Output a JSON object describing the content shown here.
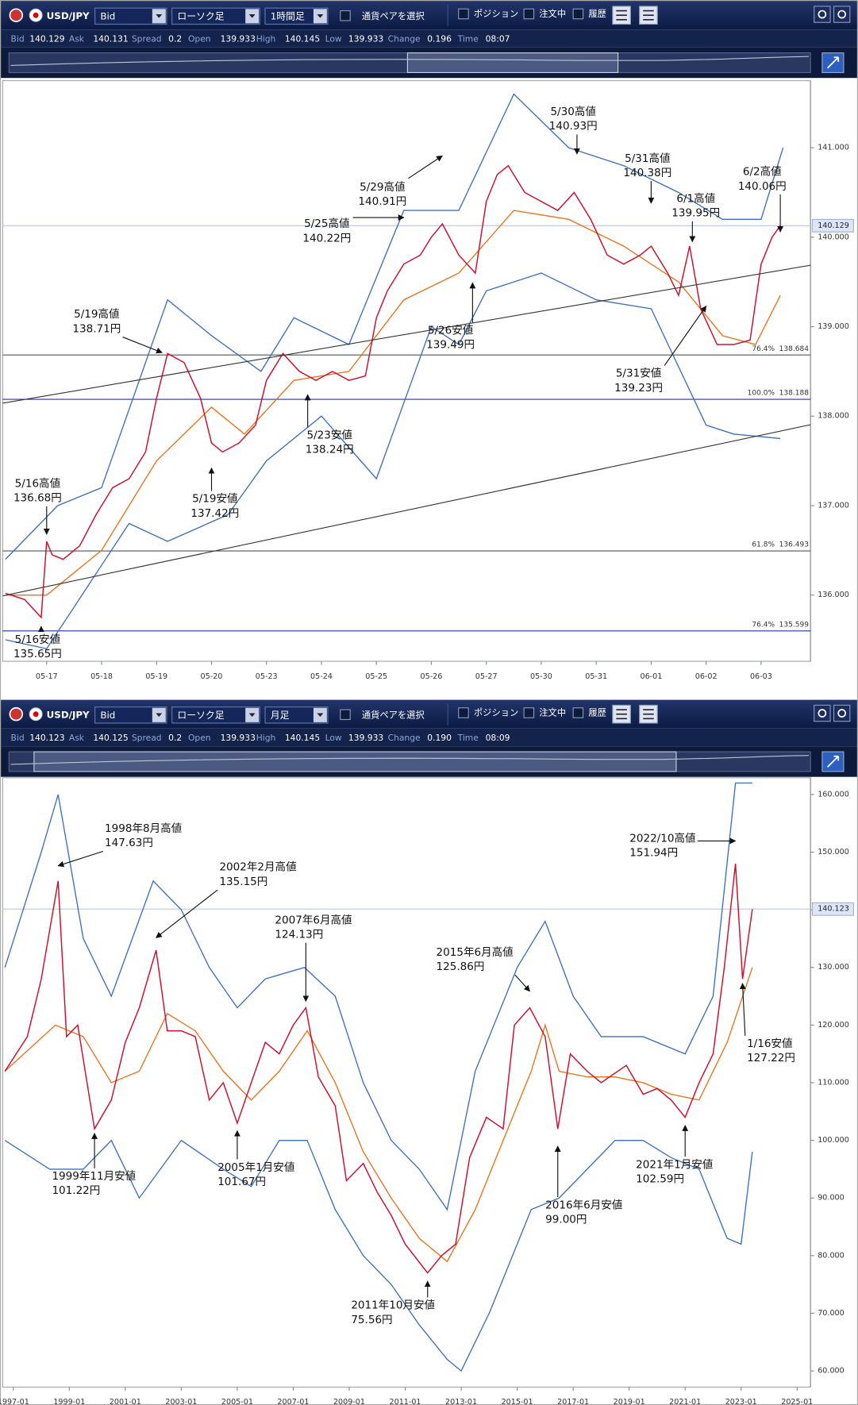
{
  "toolbars": [
    {
      "symbol": "USD/JPY",
      "price_type": "Bid",
      "chart_style": "ローソク足",
      "timeframe": "1時間足",
      "pair_select": "通貨ペアを選択",
      "options": [
        "ポジション",
        "注文中",
        "履歴"
      ]
    },
    {
      "symbol": "USD/JPY",
      "price_type": "Bid",
      "chart_style": "ローソク足",
      "timeframe": "月足",
      "pair_select": "通貨ペアを選択",
      "options": [
        "ポジション",
        "注文中",
        "履歴"
      ]
    }
  ],
  "quotes": [
    [
      {
        "label": "Bid",
        "value": "140.129"
      },
      {
        "label": "Ask",
        "value": "140.131"
      },
      {
        "label": "Spread",
        "value": "0.2"
      },
      {
        "label": "Open",
        "value": "139.933"
      },
      {
        "label": "High",
        "value": "140.145"
      },
      {
        "label": "Low",
        "value": "139.933"
      },
      {
        "label": "Change",
        "value": "0.196"
      },
      {
        "label": "Time",
        "value": "08:07"
      }
    ],
    [
      {
        "label": "Bid",
        "value": "140.123"
      },
      {
        "label": "Ask",
        "value": "140.125"
      },
      {
        "label": "Spread",
        "value": "0.2"
      },
      {
        "label": "Open",
        "value": "139.933"
      },
      {
        "label": "High",
        "value": "140.145"
      },
      {
        "label": "Low",
        "value": "139.933"
      },
      {
        "label": "Change",
        "value": "0.190"
      },
      {
        "label": "Time",
        "value": "08:09"
      }
    ]
  ],
  "chart_data": [
    {
      "type": "line",
      "xlim": [
        -0.8,
        13.9
      ],
      "xticks": [
        {
          "value": 0,
          "label": "05-17"
        },
        {
          "value": 1,
          "label": "05-18"
        },
        {
          "value": 2,
          "label": "05-19"
        },
        {
          "value": 3,
          "label": "05-20"
        },
        {
          "value": 4,
          "label": "05-23"
        },
        {
          "value": 5,
          "label": "05-24"
        },
        {
          "value": 6,
          "label": "05-25"
        },
        {
          "value": 7,
          "label": "05-26"
        },
        {
          "value": 8,
          "label": "05-27"
        },
        {
          "value": 9,
          "label": "05-30"
        },
        {
          "value": 10,
          "label": "05-31"
        },
        {
          "value": 11,
          "label": "06-01"
        },
        {
          "value": 12,
          "label": "06-02"
        },
        {
          "value": 13,
          "label": "06-03"
        }
      ],
      "ylim": [
        135.26,
        141.75
      ],
      "yticks": [
        {
          "value": 136,
          "label": "136.000"
        },
        {
          "value": 137,
          "label": "137.000"
        },
        {
          "value": 138,
          "label": "138.000"
        },
        {
          "value": 139,
          "label": "139.000"
        },
        {
          "value": 140,
          "label": "140.000"
        },
        {
          "value": 141,
          "label": "141.000"
        }
      ],
      "current_price": 140.129,
      "series": [
        {
          "color": "#cc1030",
          "x": [
            -0.75,
            -0.4,
            -0.1,
            0,
            0.1,
            0.3,
            0.6,
            0.9,
            1.2,
            1.5,
            1.8,
            2.0,
            2.2,
            2.5,
            2.8,
            3.0,
            3.2,
            3.5,
            3.8,
            4.0,
            4.3,
            4.6,
            4.9,
            5.2,
            5.5,
            5.8,
            6.0,
            6.2,
            6.5,
            6.8,
            7.0,
            7.2,
            7.5,
            7.8,
            8.0,
            8.2,
            8.4,
            8.7,
            9.0,
            9.3,
            9.6,
            9.9,
            10.2,
            10.5,
            10.8,
            11.0,
            11.3,
            11.5,
            11.7,
            11.9,
            12.2,
            12.5,
            12.8,
            13.0,
            13.2,
            13.35
          ],
          "values": [
            136.02,
            135.95,
            135.75,
            136.6,
            136.45,
            136.4,
            136.55,
            136.9,
            137.2,
            137.3,
            137.6,
            138.2,
            138.7,
            138.6,
            138.2,
            137.7,
            137.6,
            137.7,
            137.9,
            138.4,
            138.7,
            138.5,
            138.4,
            138.5,
            138.4,
            138.45,
            139.1,
            139.4,
            139.7,
            139.8,
            140.0,
            140.15,
            139.8,
            139.6,
            140.4,
            140.7,
            140.8,
            140.5,
            140.4,
            140.3,
            140.5,
            140.2,
            139.8,
            139.7,
            139.8,
            139.9,
            139.6,
            139.35,
            139.9,
            139.2,
            138.8,
            138.8,
            138.85,
            139.7,
            140.0,
            140.13
          ]
        },
        {
          "color": "#e8731a",
          "x": [
            -0.75,
            0,
            1,
            2,
            3,
            3.6,
            4.5,
            5.5,
            6.5,
            7.5,
            8.5,
            9.5,
            10.5,
            11.5,
            12.3,
            12.9,
            13.35
          ],
          "values": [
            136.0,
            136.0,
            136.5,
            137.5,
            138.1,
            137.8,
            138.4,
            138.5,
            139.3,
            139.6,
            140.3,
            140.2,
            139.9,
            139.5,
            138.9,
            138.8,
            139.35
          ]
        },
        {
          "color": "#3d6fc0",
          "x": [
            -0.75,
            0.2,
            1.0,
            2.2,
            3.0,
            3.9,
            4.5,
            5.5,
            6.5,
            7.5,
            8.5,
            9.5,
            10.5,
            11.5,
            12.3,
            13.0,
            13.4
          ],
          "values": [
            136.4,
            137.0,
            137.2,
            139.3,
            138.9,
            138.5,
            139.1,
            138.8,
            140.3,
            140.3,
            141.6,
            141.0,
            140.8,
            140.5,
            140.2,
            140.2,
            141.0
          ]
        },
        {
          "color": "#3d6fc0",
          "x": [
            -0.75,
            0,
            1.5,
            2.2,
            3.3,
            4,
            5,
            6,
            7,
            7.5,
            8,
            9,
            10,
            11,
            12,
            12.5,
            13.35
          ],
          "values": [
            135.5,
            135.4,
            136.8,
            136.6,
            136.9,
            137.5,
            138.0,
            137.3,
            139.0,
            138.8,
            139.4,
            139.6,
            139.3,
            139.2,
            137.9,
            137.8,
            137.75
          ]
        }
      ],
      "levels": [
        {
          "ratio": "76.4%",
          "price": 138.684,
          "color": "#555555"
        },
        {
          "ratio": "100.0%",
          "price": 138.188,
          "color": "#2233aa"
        },
        {
          "ratio": "61.8%",
          "price": 136.493,
          "color": "#555555"
        },
        {
          "ratio": "76.4%",
          "price": 135.599,
          "color": "#2233aa"
        }
      ],
      "annotations": [
        {
          "text": "5/16高値",
          "value": 136.68,
          "value_label": "136.68円",
          "x": 0
        },
        {
          "text": "5/16安値",
          "value": 135.65,
          "value_label": "135.65円",
          "x": -0.1
        },
        {
          "text": "5/19高値",
          "value": 138.71,
          "value_label": "138.71円",
          "x": 2.1
        },
        {
          "text": "5/19安値",
          "value": 137.42,
          "value_label": "137.42円",
          "x": 3.0
        },
        {
          "text": "5/23安値",
          "value": 138.24,
          "value_label": "138.24円",
          "x": 4.75
        },
        {
          "text": "5/25高値",
          "value": 140.22,
          "value_label": "140.22円",
          "x": 6.5
        },
        {
          "text": "5/26安値",
          "value": 139.49,
          "value_label": "139.49円",
          "x": 7.75
        },
        {
          "text": "5/29高値",
          "value": 140.91,
          "value_label": "140.91円",
          "x": 7.2
        },
        {
          "text": "5/30高値",
          "value": 140.93,
          "value_label": "140.93円",
          "x": 9.65
        },
        {
          "text": "5/31高値",
          "value": 140.38,
          "value_label": "140.38円",
          "x": 11.0
        },
        {
          "text": "6/1高値",
          "value": 139.95,
          "value_label": "139.95円",
          "x": 11.75
        },
        {
          "text": "5/31安値",
          "value": 139.23,
          "value_label": "139.23円",
          "x": 12.0
        },
        {
          "text": "6/2高値",
          "value": 140.06,
          "value_label": "140.06円",
          "x": 13.35
        }
      ]
    },
    {
      "type": "line",
      "xlim": [
        1996.62,
        2025.48
      ],
      "xticks": [
        {
          "value": 1997,
          "label": "1997-01"
        },
        {
          "value": 1999,
          "label": "1999-01"
        },
        {
          "value": 2001,
          "label": "2001-01"
        },
        {
          "value": 2003,
          "label": "2003-01"
        },
        {
          "value": 2005,
          "label": "2005-01"
        },
        {
          "value": 2007,
          "label": "2007-01"
        },
        {
          "value": 2009,
          "label": "2009-01"
        },
        {
          "value": 2011,
          "label": "2011-01"
        },
        {
          "value": 2013,
          "label": "2013-01"
        },
        {
          "value": 2015,
          "label": "2015-01"
        },
        {
          "value": 2017,
          "label": "2017-01"
        },
        {
          "value": 2019,
          "label": "2019-01"
        },
        {
          "value": 2021,
          "label": "2021-01"
        },
        {
          "value": 2023,
          "label": "2023-01"
        },
        {
          "value": 2025,
          "label": "2025-01"
        }
      ],
      "ylim": [
        57.2,
        162.9
      ],
      "yticks": [
        {
          "value": 60,
          "label": "60.000"
        },
        {
          "value": 70,
          "label": "70.000"
        },
        {
          "value": 80,
          "label": "80.000"
        },
        {
          "value": 90,
          "label": "90.000"
        },
        {
          "value": 100,
          "label": "100.000"
        },
        {
          "value": 110,
          "label": "110.000"
        },
        {
          "value": 120,
          "label": "120.000"
        },
        {
          "value": 130,
          "label": "130.000"
        },
        {
          "value": 140,
          "label": "140.000"
        },
        {
          "value": 150,
          "label": "150.000"
        },
        {
          "value": 160,
          "label": "160.000"
        }
      ],
      "current_price": 140.123,
      "series": [
        {
          "color": "#cc1030",
          "x": [
            1996.7,
            1997.5,
            1998.0,
            1998.6,
            1998.9,
            1999.3,
            1999.9,
            2000.5,
            2001.0,
            2001.5,
            2002.1,
            2002.5,
            2003.0,
            2003.5,
            2004.0,
            2004.5,
            2005.0,
            2005.5,
            2006.0,
            2006.5,
            2007.0,
            2007.45,
            2007.9,
            2008.5,
            2008.9,
            2009.5,
            2010.0,
            2010.5,
            2011.0,
            2011.8,
            2012.3,
            2012.8,
            2013.3,
            2013.9,
            2014.5,
            2014.9,
            2015.45,
            2016.0,
            2016.45,
            2016.9,
            2017.5,
            2018.0,
            2018.9,
            2019.5,
            2020.0,
            2020.5,
            2021.0,
            2021.5,
            2022.0,
            2022.4,
            2022.8,
            2023.05,
            2023.4
          ],
          "values": [
            112,
            118,
            128,
            145,
            118,
            120,
            102,
            107,
            117,
            123,
            133,
            119,
            119,
            118,
            107,
            110,
            103,
            110,
            117,
            115,
            120,
            123,
            111,
            106,
            93,
            96,
            91,
            87,
            82,
            77,
            80,
            82,
            97,
            104,
            102,
            120,
            123,
            118,
            102,
            115,
            112,
            110,
            113,
            108,
            109,
            107,
            104,
            110,
            115,
            130,
            148,
            128,
            140.1
          ]
        },
        {
          "color": "#e8731a",
          "x": [
            1996.7,
            1998.5,
            1999.5,
            2000.5,
            2001.5,
            2002.5,
            2003.5,
            2004.5,
            2005.5,
            2006.5,
            2007.5,
            2008.5,
            2009.5,
            2010.5,
            2011.5,
            2012.5,
            2013.5,
            2014.5,
            2015.5,
            2016.0,
            2016.5,
            2017.5,
            2018.5,
            2019.5,
            2020.5,
            2021.5,
            2022.5,
            2023.4
          ],
          "values": [
            112,
            120,
            118,
            110,
            112,
            122,
            119,
            112,
            107,
            112,
            119,
            110,
            98,
            90,
            83,
            79,
            88,
            100,
            112,
            120,
            112,
            111,
            111,
            110,
            108,
            107,
            117,
            130
          ]
        },
        {
          "color": "#3d6fc0",
          "x": [
            1996.7,
            1998.0,
            1998.6,
            1999.5,
            2000.5,
            2002.0,
            2003.0,
            2004.0,
            2005.0,
            2006.0,
            2007.4,
            2008.5,
            2009.5,
            2010.5,
            2011.5,
            2012.5,
            2013.5,
            2015.0,
            2016.0,
            2017.0,
            2018.0,
            2019.5,
            2021.0,
            2022.0,
            2022.8,
            2023.4
          ],
          "values": [
            130,
            150,
            160,
            135,
            125,
            145,
            140,
            130,
            123,
            128,
            130,
            125,
            110,
            100,
            95,
            88,
            112,
            130,
            138,
            125,
            118,
            118,
            115,
            125,
            162,
            162
          ]
        },
        {
          "color": "#3d6fc0",
          "x": [
            1996.7,
            1998.3,
            1999.5,
            2000.5,
            2001.5,
            2003.0,
            2004.5,
            2005.5,
            2006.5,
            2007.5,
            2008.5,
            2009.5,
            2010.5,
            2011.5,
            2012.5,
            2013.0,
            2014.0,
            2015.5,
            2016.5,
            2017.5,
            2018.5,
            2019.5,
            2020.5,
            2021.5,
            2022.5,
            2023.0,
            2023.4
          ],
          "values": [
            100,
            95,
            95,
            100,
            90,
            100,
            95,
            92,
            100,
            100,
            88,
            80,
            75,
            68,
            62,
            60,
            70,
            88,
            90,
            95,
            100,
            100,
            97,
            95,
            83,
            82,
            98
          ]
        }
      ],
      "levels": [],
      "annotations": [
        {
          "text": "1998年8月高値",
          "value": 147.63,
          "value_label": "147.63円",
          "x": 1998.6
        },
        {
          "text": "1999年11月安値",
          "value": 101.22,
          "value_label": "101.22円",
          "x": 1999.9
        },
        {
          "text": "2002年2月高値",
          "value": 135.15,
          "value_label": "135.15円",
          "x": 2002.1
        },
        {
          "text": "2005年1月安値",
          "value": 101.67,
          "value_label": "101.67円",
          "x": 2005.0
        },
        {
          "text": "2007年6月高値",
          "value": 124.13,
          "value_label": "124.13円",
          "x": 2007.45
        },
        {
          "text": "2011年10月安値",
          "value": 75.56,
          "value_label": "75.56円",
          "x": 2011.8
        },
        {
          "text": "2015年6月高値",
          "value": 125.86,
          "value_label": "125.86円",
          "x": 2015.45
        },
        {
          "text": "2016年6月安値",
          "value": 99.0,
          "value_label": "99.00円",
          "x": 2016.45
        },
        {
          "text": "2021年1月安値",
          "value": 102.59,
          "value_label": "102.59円",
          "x": 2021.0
        },
        {
          "text": "2022/10高値",
          "value": 151.94,
          "value_label": "151.94円",
          "x": 2022.8
        },
        {
          "text": "1/16安値",
          "value": 127.22,
          "value_label": "127.22円",
          "x": 2023.05
        }
      ]
    }
  ]
}
